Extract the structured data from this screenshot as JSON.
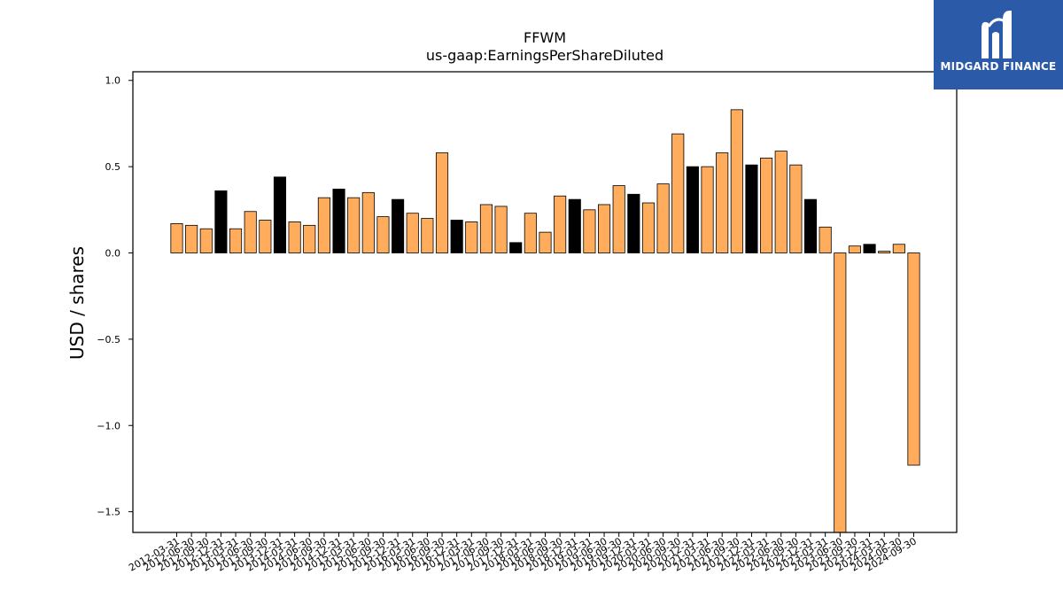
{
  "chart_data": {
    "type": "bar",
    "title": "FFWM",
    "subtitle": "us-gaap:EarningsPerShareDiluted",
    "ylabel": "USD / shares",
    "xlabel": "",
    "ylim": [
      -1.62,
      1.05
    ],
    "yticks": [
      1.0,
      0.5,
      0.0,
      -0.5,
      -1.0,
      -1.5
    ],
    "ytick_labels": [
      "1.0",
      "0.5",
      "0.0",
      "−0.5",
      "−1.0",
      "−1.5"
    ],
    "grid": false,
    "colors": {
      "default": "#ffad5c",
      "highlight": "#000000",
      "edge": "#000000"
    },
    "categories": [
      "2012-03-31",
      "2012-06-30",
      "2012-09-30",
      "2012-12-31",
      "2013-03-31",
      "2013-06-30",
      "2013-09-30",
      "2013-12-31",
      "2014-03-31",
      "2014-06-30",
      "2014-09-30",
      "2014-12-31",
      "2015-03-31",
      "2015-06-30",
      "2015-09-30",
      "2015-12-31",
      "2016-03-31",
      "2016-06-30",
      "2016-09-30",
      "2016-12-31",
      "2017-03-31",
      "2017-06-30",
      "2017-09-30",
      "2017-12-31",
      "2018-03-31",
      "2018-06-30",
      "2018-09-30",
      "2018-12-31",
      "2019-03-31",
      "2019-06-30",
      "2019-09-30",
      "2019-12-31",
      "2020-03-31",
      "2020-06-30",
      "2020-09-30",
      "2020-12-31",
      "2021-03-31",
      "2021-06-30",
      "2021-09-30",
      "2021-12-31",
      "2022-03-31",
      "2022-06-30",
      "2022-09-30",
      "2022-12-31",
      "2023-03-31",
      "2023-06-30",
      "2023-09-30",
      "2023-12-31",
      "2024-03-31",
      "2024-06-30",
      "2024-09-30"
    ],
    "values": [
      0.17,
      0.16,
      0.14,
      0.36,
      0.14,
      0.24,
      0.19,
      0.44,
      0.18,
      0.16,
      0.32,
      0.37,
      0.32,
      0.35,
      0.21,
      0.31,
      0.23,
      0.2,
      0.58,
      0.19,
      0.18,
      0.28,
      0.27,
      0.06,
      0.23,
      0.12,
      0.33,
      0.31,
      0.25,
      0.28,
      0.39,
      0.34,
      0.29,
      0.4,
      0.69,
      0.5,
      0.5,
      0.58,
      0.83,
      0.51,
      0.55,
      0.59,
      0.51,
      0.31,
      0.15,
      -1.62,
      0.04,
      0.05,
      0.01,
      0.05,
      -1.23
    ],
    "highlight": [
      false,
      false,
      false,
      true,
      false,
      false,
      false,
      true,
      false,
      false,
      false,
      true,
      false,
      false,
      false,
      true,
      false,
      false,
      false,
      true,
      false,
      false,
      false,
      true,
      false,
      false,
      false,
      true,
      false,
      false,
      false,
      true,
      false,
      false,
      false,
      true,
      false,
      false,
      false,
      true,
      false,
      false,
      false,
      true,
      false,
      false,
      false,
      true,
      false,
      false,
      false
    ]
  },
  "logo": {
    "text": "MIDGARD FINANCE",
    "background": "#2b5aa8"
  }
}
